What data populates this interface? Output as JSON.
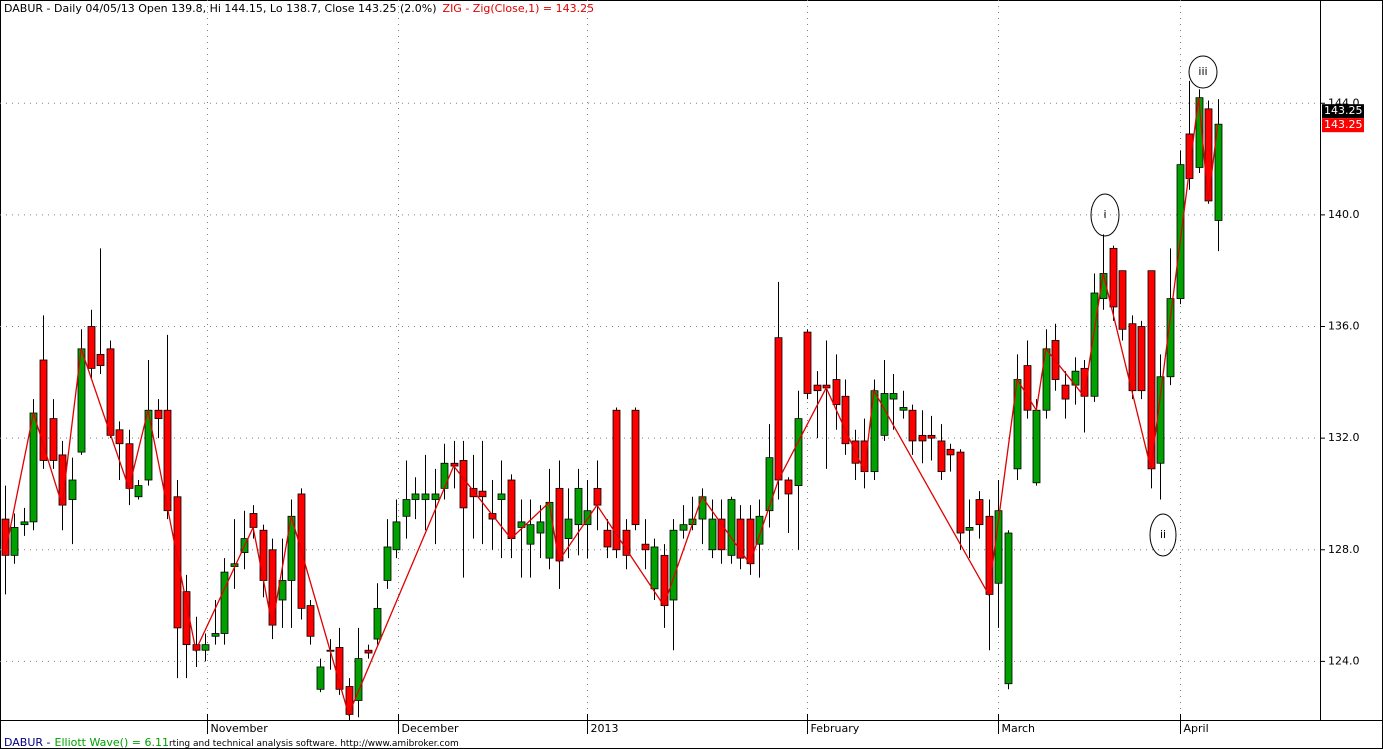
{
  "chart_data": {
    "type": "candlestick",
    "title": "DABUR - Daily 04/05/13 Open 139.8, Hi 144.15, Lo 138.7, Close 143.25 (2.0%)",
    "indicator_label": "ZIG - Zig(Close,1) = 143.25",
    "footer_ticker": "DABUR -",
    "footer_indicator": "Elliott Wave() = 6.11",
    "footer_text": "rting and technical analysis software. http://www.amibroker.com",
    "up_color": "#00a000",
    "down_color": "#ff0000",
    "ylim": [
      121.9,
      147.7
    ],
    "yticks": [
      {
        "value": 124,
        "label": "124.0"
      },
      {
        "value": 128,
        "label": "128.0"
      },
      {
        "value": 132,
        "label": "132.0"
      },
      {
        "value": 136,
        "label": "136.0"
      },
      {
        "value": 140,
        "label": "140.0"
      },
      {
        "value": 144,
        "label": "144.0"
      }
    ],
    "xlim": [
      -0.5,
      137.7
    ],
    "xticks": [
      {
        "value": 21.2,
        "label": "November"
      },
      {
        "value": 41.2,
        "label": "December"
      },
      {
        "value": 61,
        "label": "2013"
      },
      {
        "value": 84,
        "label": "February"
      },
      {
        "value": 104,
        "label": "March"
      },
      {
        "value": 123,
        "label": "April"
      }
    ],
    "grid": true,
    "open": [
      129.1,
      127.8,
      128.9,
      129.0,
      134.8,
      132.7,
      131.4,
      129.8,
      131.5,
      136.0,
      135.0,
      135.2,
      132.3,
      131.8,
      129.9,
      130.5,
      133.0,
      133.0,
      129.9,
      126.5,
      124.6,
      124.4,
      124.9,
      125.0,
      127.4,
      127.9,
      129.3,
      128.7,
      128.0,
      126.2,
      126.9,
      130.0,
      126.0,
      123.0,
      124.4,
      124.5,
      123.1,
      122.6,
      124.4,
      124.8,
      126.9,
      128.0,
      129.2,
      129.8,
      129.8,
      129.8,
      130.2,
      131.1,
      131.2,
      130.2,
      130.1,
      129.3,
      129.8,
      130.5,
      128.8,
      128.2,
      128.6,
      127.7,
      130.2,
      128.4,
      128.9,
      128.9,
      130.2,
      128.7,
      133.0,
      128.7,
      133.0,
      128.2,
      126.6,
      127.8,
      126.2,
      128.7,
      128.9,
      129.1,
      128.0,
      129.1,
      127.8,
      129.1,
      129.1,
      128.2,
      129.4,
      135.6,
      130.5,
      130.3,
      135.8,
      133.9,
      133.9,
      134.1,
      133.5,
      131.9,
      131.9,
      130.8,
      132.1,
      133.4,
      133.0,
      133.0,
      132.1,
      132.1,
      131.9,
      131.6,
      131.5,
      128.7,
      129.8,
      129.2,
      126.8,
      123.2,
      130.9,
      134.6,
      130.4,
      133.0,
      135.5,
      133.9,
      133.9,
      134.5,
      133.5,
      137.0,
      138.8,
      138.0,
      136.1,
      136.0,
      138.0,
      131.1,
      134.2,
      137.0,
      142.9,
      141.7,
      143.8,
      139.8
    ],
    "high": [
      130.3,
      129.3,
      129.5,
      133.4,
      136.4,
      133.4,
      131.9,
      131.3,
      135.9,
      136.6,
      138.8,
      135.5,
      132.6,
      132.3,
      130.5,
      134.8,
      133.4,
      135.7,
      130.5,
      127.1,
      125.6,
      125.0,
      126.2,
      127.7,
      129.1,
      129.4,
      129.6,
      128.9,
      128.4,
      128.4,
      129.8,
      130.2,
      126.2,
      124.1,
      124.8,
      125.2,
      123.4,
      125.2,
      124.6,
      126.8,
      129.1,
      129.8,
      131.2,
      130.6,
      131.4,
      130.9,
      131.8,
      131.9,
      131.9,
      131.4,
      131.9,
      130.5,
      131.2,
      130.7,
      129.8,
      129.8,
      129.6,
      130.9,
      131.2,
      130.2,
      130.9,
      130.5,
      131.2,
      129.1,
      133.1,
      129.1,
      133.1,
      129.1,
      128.4,
      128.2,
      129.1,
      129.6,
      129.9,
      130.2,
      129.8,
      129.8,
      129.9,
      129.6,
      129.6,
      129.8,
      132.5,
      137.6,
      130.6,
      133.7,
      135.9,
      134.4,
      135.5,
      135.0,
      134.1,
      132.3,
      132.7,
      134.1,
      134.8,
      134.3,
      133.7,
      133.2,
      133.0,
      132.8,
      132.5,
      131.8,
      131.6,
      129.8,
      130.1,
      129.8,
      130.5,
      128.7,
      135.0,
      135.5,
      133.4,
      135.9,
      136.1,
      134.4,
      134.9,
      134.8,
      137.9,
      139.3,
      138.9,
      138.0,
      136.4,
      136.2,
      138.0,
      135.0,
      138.8,
      142.3,
      144.8,
      144.5,
      144.1,
      144.15
    ],
    "low": [
      126.4,
      127.5,
      128.5,
      128.7,
      130.9,
      130.9,
      128.7,
      128.2,
      131.4,
      134.1,
      134.3,
      132.0,
      130.5,
      129.6,
      129.8,
      130.3,
      132.0,
      129.1,
      123.4,
      123.4,
      123.8,
      124.0,
      124.6,
      124.6,
      126.6,
      127.3,
      128.4,
      126.3,
      124.8,
      125.2,
      125.2,
      125.5,
      124.6,
      122.9,
      123.7,
      122.8,
      121.9,
      122.0,
      124.1,
      124.6,
      126.6,
      127.7,
      128.4,
      129.1,
      128.7,
      128.2,
      129.8,
      130.2,
      127.0,
      128.4,
      128.2,
      128.0,
      127.7,
      127.7,
      127.0,
      127.0,
      127.7,
      127.3,
      126.6,
      127.7,
      127.8,
      127.7,
      128.7,
      127.7,
      127.7,
      127.3,
      128.7,
      127.3,
      126.2,
      125.2,
      124.4,
      128.4,
      128.7,
      128.2,
      127.7,
      127.5,
      127.5,
      127.3,
      127.1,
      127.0,
      128.8,
      129.8,
      128.6,
      128.0,
      133.4,
      132.0,
      130.9,
      132.3,
      131.4,
      130.5,
      130.2,
      130.5,
      131.9,
      132.3,
      132.7,
      131.4,
      131.1,
      131.2,
      130.5,
      130.8,
      128.0,
      127.7,
      128.4,
      124.4,
      125.2,
      123.0,
      130.5,
      132.7,
      130.3,
      132.7,
      133.7,
      132.7,
      133.2,
      132.2,
      133.3,
      136.6,
      136.2,
      135.5,
      133.4,
      133.4,
      130.2,
      129.8,
      133.9,
      136.8,
      140.9,
      141.5,
      140.4,
      138.7
    ],
    "close": [
      127.8,
      128.8,
      129.0,
      132.9,
      131.2,
      131.2,
      129.6,
      130.5,
      135.2,
      134.5,
      134.6,
      132.1,
      131.8,
      130.2,
      130.3,
      133.0,
      132.7,
      129.4,
      125.2,
      124.6,
      124.4,
      124.6,
      125.0,
      127.2,
      127.5,
      128.4,
      128.8,
      126.9,
      125.3,
      126.9,
      129.2,
      125.9,
      124.9,
      123.8,
      124.4,
      123.0,
      122.1,
      124.1,
      124.3,
      125.9,
      128.1,
      129.0,
      129.8,
      130.0,
      130.0,
      130.0,
      131.1,
      131.0,
      129.5,
      129.9,
      129.9,
      129.1,
      130.0,
      128.4,
      129.0,
      128.9,
      129.0,
      129.7,
      127.6,
      129.1,
      130.2,
      129.4,
      129.6,
      128.1,
      128.0,
      127.8,
      128.9,
      128.0,
      128.1,
      126.0,
      128.7,
      128.9,
      129.1,
      129.9,
      129.1,
      128.0,
      129.8,
      127.7,
      127.5,
      129.2,
      131.3,
      130.5,
      130.0,
      132.7,
      133.6,
      133.7,
      133.8,
      133.2,
      131.8,
      131.1,
      130.8,
      133.7,
      133.6,
      133.6,
      133.1,
      131.9,
      131.9,
      132.0,
      130.8,
      131.4,
      128.6,
      128.8,
      128.9,
      126.4,
      129.4,
      128.6,
      134.1,
      133.0,
      133.0,
      135.2,
      134.1,
      133.4,
      134.4,
      133.5,
      137.2,
      137.9,
      136.7,
      135.9,
      133.7,
      133.7,
      130.9,
      134.2,
      137.0,
      141.8,
      141.3,
      144.2,
      140.5,
      143.25
    ],
    "zigzag": {
      "color": "#e00000",
      "x": [
        0,
        3,
        6,
        8,
        13,
        15,
        20,
        26,
        28,
        30,
        36,
        47,
        53,
        57,
        58,
        62,
        69,
        73,
        78,
        81,
        86,
        90,
        91,
        103,
        106,
        108,
        109,
        113,
        115,
        120,
        125,
        126,
        127
      ],
      "values": [
        127.8,
        132.9,
        129.6,
        135.2,
        130.2,
        133.0,
        124.4,
        128.8,
        125.3,
        129.2,
        122.1,
        131.0,
        128.4,
        129.7,
        127.6,
        129.6,
        126.0,
        129.9,
        127.5,
        130.5,
        133.8,
        130.8,
        133.7,
        126.4,
        134.1,
        133.0,
        135.2,
        133.5,
        137.9,
        130.9,
        144.2,
        140.5,
        143.25
      ]
    },
    "price_markers": [
      {
        "value": 143.25,
        "label": "143.25",
        "color": "#000000"
      },
      {
        "value": 143.25,
        "label": "143.25",
        "color": "#ff0000"
      }
    ],
    "annotations": [
      {
        "text": "i"
      },
      {
        "text": "ii"
      },
      {
        "text": "iii"
      }
    ]
  }
}
